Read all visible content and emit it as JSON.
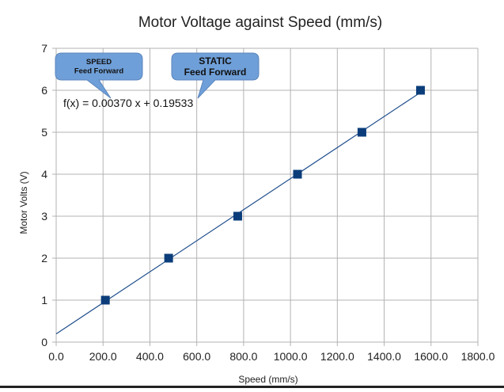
{
  "chart_data": {
    "type": "scatter",
    "title": "Motor Voltage against Speed (mm/s)",
    "xlabel": "Speed (mm/s)",
    "ylabel": "Motor Volts (V)",
    "xlim": [
      0,
      1800
    ],
    "ylim": [
      0,
      7
    ],
    "xticks": [
      "0.0",
      "200.0",
      "400.0",
      "600.0",
      "800.0",
      "1000.0",
      "1200.0",
      "1400.0",
      "1600.0",
      "1800.0"
    ],
    "yticks": [
      "0",
      "1",
      "2",
      "3",
      "4",
      "5",
      "6",
      "7"
    ],
    "grid": true,
    "series": [
      {
        "x": [
          210,
          480,
          775,
          1030,
          1305,
          1555
        ],
        "y": [
          1,
          2,
          3,
          4,
          5,
          6
        ],
        "color": "#0b3d7a"
      }
    ],
    "trendline": {
      "equation": "f(x) = 0.00370 x + 0.19533",
      "slope": 0.0037,
      "intercept": 0.19533,
      "color": "#1f4e8c"
    },
    "annotations": [
      {
        "line1": "SPEED",
        "line2": "Feed Forward",
        "color": "#6f9fd8"
      },
      {
        "line1": "STATIC",
        "line2": "Feed Forward",
        "color": "#6f9fd8"
      }
    ]
  }
}
